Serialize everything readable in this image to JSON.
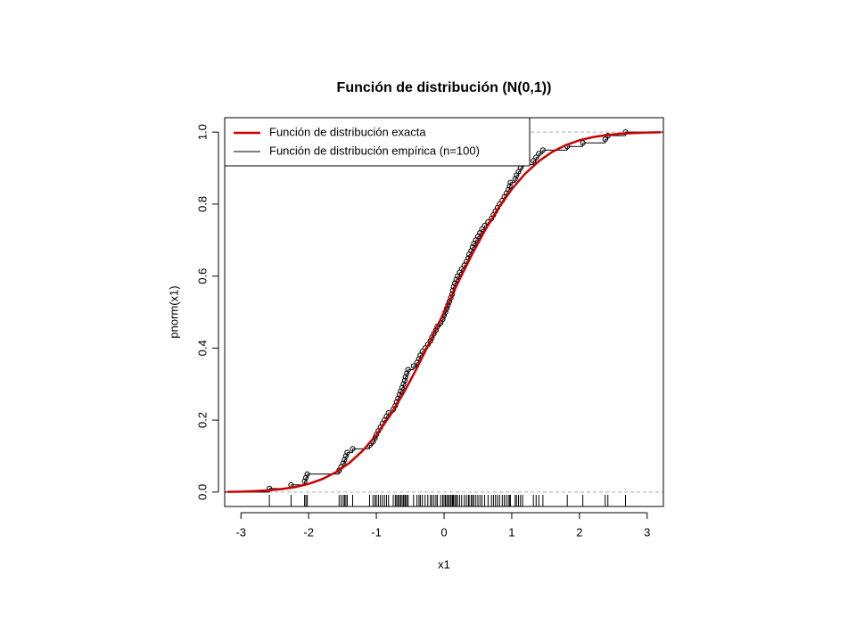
{
  "chart_data": {
    "type": "line",
    "title": "Función de distribución (N(0,1))",
    "xlabel": "x1",
    "ylabel": "pnorm(x1)",
    "xlim": [
      -3.24,
      3.24
    ],
    "ylim": [
      -0.04,
      1.04
    ],
    "xticks": [
      -3,
      -2,
      -1,
      0,
      1,
      2,
      3
    ],
    "yticks": [
      {
        "value": 0,
        "label": "0.0"
      },
      0.2,
      0.4,
      0.6,
      0.8,
      {
        "value": 1,
        "label": "1.0"
      }
    ],
    "reference_lines": [
      0,
      1
    ],
    "legend": "top-left",
    "rug": true,
    "series": [
      {
        "name": "Función de distribución exacta",
        "color": "#cc0000",
        "x": [
          -3.2,
          -3.0,
          -2.8,
          -2.6,
          -2.4,
          -2.2,
          -2.0,
          -1.8,
          -1.6,
          -1.4,
          -1.2,
          -1.0,
          -0.8,
          -0.6,
          -0.4,
          -0.2,
          0,
          0.2,
          0.4,
          0.6,
          0.8,
          1.0,
          1.2,
          1.4,
          1.6,
          1.8,
          2.0,
          2.2,
          2.4,
          2.6,
          2.8,
          3.0,
          3.2
        ],
        "values": [
          0.0007,
          0.0013,
          0.0026,
          0.0047,
          0.0082,
          0.0139,
          0.0228,
          0.0359,
          0.0548,
          0.0808,
          0.1151,
          0.1587,
          0.2119,
          0.2743,
          0.3446,
          0.4207,
          0.5,
          0.5793,
          0.6554,
          0.7257,
          0.7881,
          0.8413,
          0.8849,
          0.9192,
          0.9452,
          0.9641,
          0.9772,
          0.9861,
          0.9918,
          0.9953,
          0.9974,
          0.9987,
          0.9993
        ]
      },
      {
        "name": "Función de distribución empírica (n=100)",
        "color": "#000000",
        "style": "step",
        "x": [
          -2.58,
          -2.26,
          -2.06,
          -2.04,
          -2.02,
          -1.55,
          -1.52,
          -1.49,
          -1.47,
          -1.45,
          -1.43,
          -1.35,
          -1.1,
          -1.05,
          -1.02,
          -1.0,
          -0.97,
          -0.94,
          -0.91,
          -0.88,
          -0.85,
          -0.82,
          -0.75,
          -0.72,
          -0.7,
          -0.68,
          -0.66,
          -0.64,
          -0.62,
          -0.6,
          -0.58,
          -0.57,
          -0.55,
          -0.53,
          -0.45,
          -0.4,
          -0.37,
          -0.35,
          -0.32,
          -0.28,
          -0.24,
          -0.2,
          -0.18,
          -0.15,
          -0.12,
          -0.1,
          -0.05,
          -0.02,
          0.0,
          0.02,
          0.04,
          0.06,
          0.08,
          0.1,
          0.12,
          0.13,
          0.14,
          0.16,
          0.18,
          0.2,
          0.23,
          0.26,
          0.3,
          0.33,
          0.36,
          0.37,
          0.4,
          0.42,
          0.44,
          0.47,
          0.5,
          0.53,
          0.56,
          0.6,
          0.65,
          0.7,
          0.73,
          0.76,
          0.79,
          0.82,
          0.86,
          0.89,
          0.92,
          0.95,
          0.97,
          0.98,
          1.05,
          1.07,
          1.1,
          1.13,
          1.16,
          1.32,
          1.36,
          1.4,
          1.46,
          1.82,
          2.05,
          2.38,
          2.42,
          2.68
        ],
        "values": [
          0.01,
          0.02,
          0.03,
          0.04,
          0.05,
          0.06,
          0.07,
          0.08,
          0.09,
          0.1,
          0.11,
          0.12,
          0.13,
          0.14,
          0.15,
          0.16,
          0.17,
          0.18,
          0.19,
          0.2,
          0.21,
          0.22,
          0.23,
          0.24,
          0.25,
          0.26,
          0.27,
          0.28,
          0.29,
          0.3,
          0.31,
          0.32,
          0.33,
          0.34,
          0.35,
          0.36,
          0.37,
          0.38,
          0.39,
          0.4,
          0.41,
          0.42,
          0.43,
          0.44,
          0.45,
          0.46,
          0.47,
          0.48,
          0.49,
          0.5,
          0.51,
          0.52,
          0.53,
          0.54,
          0.55,
          0.56,
          0.57,
          0.58,
          0.59,
          0.6,
          0.61,
          0.62,
          0.63,
          0.64,
          0.65,
          0.66,
          0.67,
          0.68,
          0.69,
          0.7,
          0.71,
          0.72,
          0.73,
          0.74,
          0.75,
          0.76,
          0.77,
          0.78,
          0.79,
          0.8,
          0.81,
          0.82,
          0.83,
          0.84,
          0.85,
          0.86,
          0.87,
          0.88,
          0.89,
          0.9,
          0.91,
          0.92,
          0.93,
          0.94,
          0.95,
          0.96,
          0.97,
          0.98,
          0.99,
          1.0
        ]
      }
    ]
  }
}
